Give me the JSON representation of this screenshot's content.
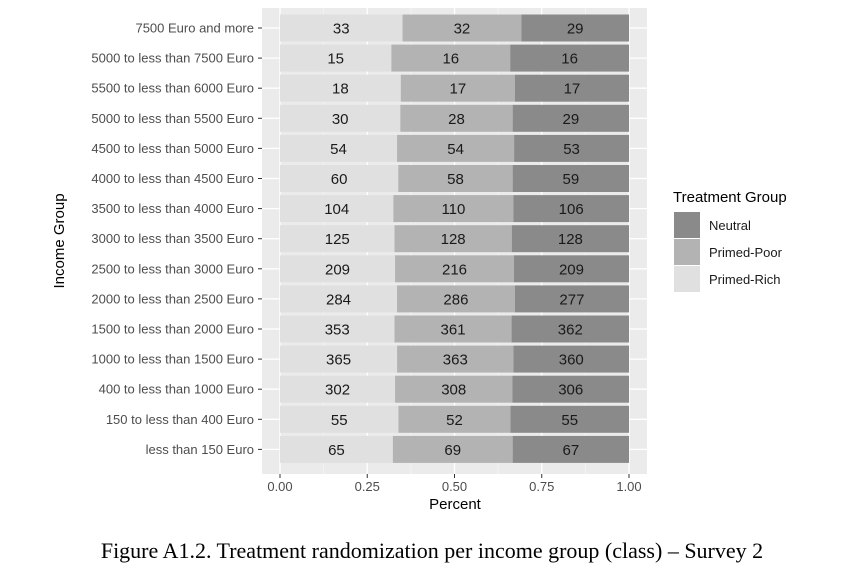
{
  "caption": "Figure A1.2. Treatment randomization per income group (class) – Survey 2",
  "chart_data": {
    "type": "bar",
    "orientation": "horizontal",
    "stacked": true,
    "normalized": true,
    "xlabel": "Percent",
    "ylabel": "Income Group",
    "xlim": [
      0,
      1
    ],
    "xticks": [
      "0.00",
      "0.25",
      "0.50",
      "0.75",
      "1.00"
    ],
    "grid": true,
    "legend": {
      "title": "Treatment Group",
      "position": "right"
    },
    "categories": [
      "7500 Euro and more",
      "5000 to less than 7500 Euro",
      "5500 to less than 6000 Euro",
      "5000 to less than 5500 Euro",
      "4500 to less than 5000 Euro",
      "4000 to less than 4500 Euro",
      "3500 to less than 4000 Euro",
      "3000 to less than 3500 Euro",
      "2500 to less than 3000 Euro",
      "2000 to less than 2500 Euro",
      "1500 to less than 2000 Euro",
      "1000 to less than 1500 Euro",
      "400 to less than 1000 Euro",
      "150 to less than 400 Euro",
      "less than 150 Euro"
    ],
    "series": [
      {
        "name": "Primed-Rich",
        "color": "#e0e0e0",
        "values": [
          33,
          15,
          18,
          30,
          54,
          60,
          104,
          125,
          209,
          284,
          353,
          365,
          302,
          55,
          65
        ]
      },
      {
        "name": "Primed-Poor",
        "color": "#b3b3b3",
        "values": [
          32,
          16,
          17,
          28,
          54,
          58,
          110,
          128,
          216,
          286,
          361,
          363,
          308,
          52,
          69
        ]
      },
      {
        "name": "Neutral",
        "color": "#8a8a8a",
        "values": [
          29,
          16,
          17,
          29,
          53,
          59,
          106,
          128,
          209,
          277,
          362,
          360,
          306,
          55,
          67
        ]
      }
    ],
    "legend_order": [
      "Neutral",
      "Primed-Poor",
      "Primed-Rich"
    ]
  }
}
